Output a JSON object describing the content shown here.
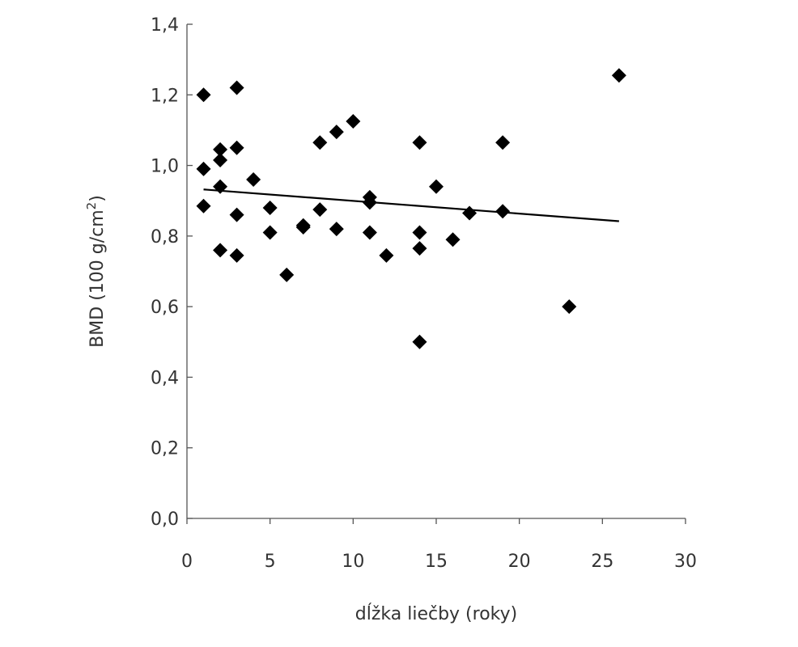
{
  "chart_data": {
    "type": "scatter",
    "title": "",
    "xlabel": "dĺžka liečby (roky)",
    "ylabel": "BMD (100 g/cm",
    "ylabel_sup": "2",
    "ylabel_end": ")",
    "xlim": [
      0,
      30
    ],
    "ylim": [
      0,
      1.4
    ],
    "xticks": [
      0,
      5,
      10,
      15,
      20,
      25,
      30
    ],
    "yticks": [
      0.0,
      0.2,
      0.4,
      0.6,
      0.8,
      1.0,
      1.2,
      1.4
    ],
    "xtick_labels": [
      "0",
      "5",
      "10",
      "15",
      "20",
      "25",
      "30"
    ],
    "ytick_labels": [
      "0,0",
      "0,2",
      "0,4",
      "0,6",
      "0,8",
      "1,0",
      "1,2",
      "1,4"
    ],
    "grid": false,
    "legend": "none",
    "marker": "diamond",
    "marker_color": "#000000",
    "points": [
      {
        "x": 1,
        "y": 1.2
      },
      {
        "x": 1,
        "y": 0.99
      },
      {
        "x": 1,
        "y": 0.885
      },
      {
        "x": 2,
        "y": 1.045
      },
      {
        "x": 2,
        "y": 1.015
      },
      {
        "x": 2,
        "y": 0.94
      },
      {
        "x": 2,
        "y": 0.76
      },
      {
        "x": 3,
        "y": 1.22
      },
      {
        "x": 3,
        "y": 1.05
      },
      {
        "x": 3,
        "y": 0.86
      },
      {
        "x": 3,
        "y": 0.745
      },
      {
        "x": 4,
        "y": 0.96
      },
      {
        "x": 5,
        "y": 0.88
      },
      {
        "x": 5,
        "y": 0.81
      },
      {
        "x": 6,
        "y": 0.69
      },
      {
        "x": 7,
        "y": 0.83
      },
      {
        "x": 7,
        "y": 0.825
      },
      {
        "x": 8,
        "y": 1.065
      },
      {
        "x": 8,
        "y": 0.875
      },
      {
        "x": 9,
        "y": 1.095
      },
      {
        "x": 9,
        "y": 0.82
      },
      {
        "x": 10,
        "y": 1.125
      },
      {
        "x": 11,
        "y": 0.91
      },
      {
        "x": 11,
        "y": 0.895
      },
      {
        "x": 11,
        "y": 0.81
      },
      {
        "x": 12,
        "y": 0.745
      },
      {
        "x": 14,
        "y": 1.065
      },
      {
        "x": 14,
        "y": 0.81
      },
      {
        "x": 14,
        "y": 0.765
      },
      {
        "x": 14,
        "y": 0.5
      },
      {
        "x": 15,
        "y": 0.94
      },
      {
        "x": 16,
        "y": 0.79
      },
      {
        "x": 17,
        "y": 0.865
      },
      {
        "x": 19,
        "y": 1.065
      },
      {
        "x": 19,
        "y": 0.87
      },
      {
        "x": 23,
        "y": 0.6
      },
      {
        "x": 26,
        "y": 1.255
      }
    ],
    "trendline": {
      "x": [
        1,
        26
      ],
      "y": [
        0.932,
        0.842
      ],
      "color": "#000000"
    }
  }
}
